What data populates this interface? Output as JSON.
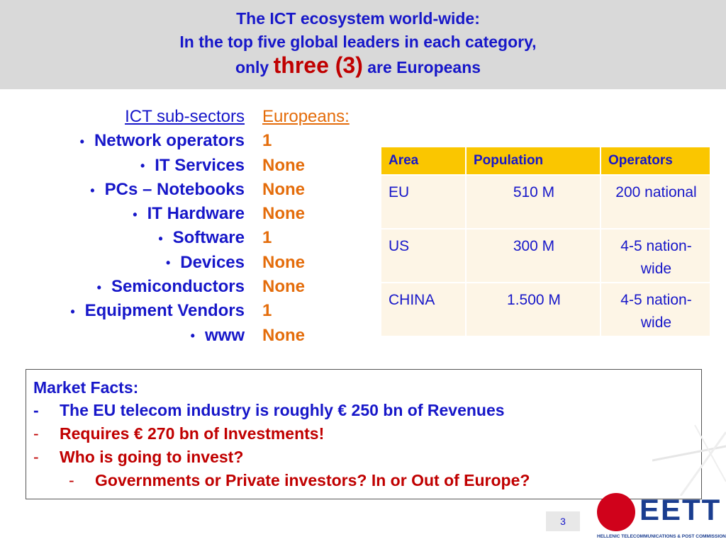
{
  "title": {
    "line1": "The ICT ecosystem world-wide:",
    "line2": "In the top five global leaders in each category,",
    "line3_pre": "only",
    "line3_highlight": "three (3)",
    "line3_post": "are Europeans"
  },
  "subsectors": {
    "header": "ICT sub-sectors",
    "bullet": "•",
    "items": [
      "Network operators",
      "IT Services",
      "PCs – Notebooks",
      "IT Hardware",
      "Software",
      "Devices",
      "Semiconductors",
      "Equipment Vendors",
      "www"
    ]
  },
  "europeans": {
    "header": "Europeans:",
    "values": [
      "1",
      "None",
      "None",
      "None",
      "1",
      "None",
      "None",
      "1",
      "None"
    ]
  },
  "operators_table": {
    "headers": [
      "Area",
      "Population",
      "Operators"
    ],
    "rows": [
      {
        "area": "EU",
        "population": "510 M",
        "operators": "200 national"
      },
      {
        "area": "US",
        "population": "300 M",
        "operators": "4-5 nation-wide"
      },
      {
        "area": "CHINA",
        "population": "1.500 M",
        "operators": "4-5 nation-wide"
      }
    ]
  },
  "market_facts": {
    "heading": "Market Facts:",
    "dash": "-",
    "fact1": "The EU telecom industry is roughly € 250 bn of Revenues",
    "fact2": "Requires € 270 bn of Investments!",
    "fact3": "Who is going to invest?",
    "fact4": "Governments or Private investors? In or Out of Europe?"
  },
  "footer": {
    "page_number": "3",
    "logo_text": "EETT",
    "logo_subtitle": "HELLENIC TELECOMMUNICATIONS & POST COMMISSION"
  },
  "colors": {
    "blue": "#1717c9",
    "orange": "#e46c0a",
    "red": "#c00000",
    "table_header": "#fac600",
    "table_cell": "#fdf5e6",
    "header_band": "#d9d9d9"
  }
}
